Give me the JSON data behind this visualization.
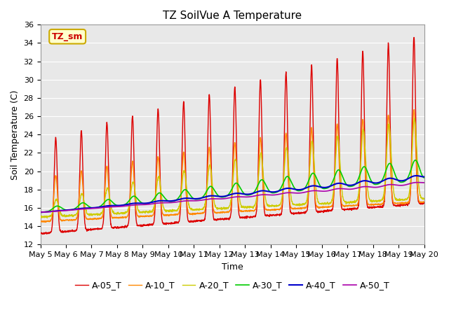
{
  "title": "TZ SoilVue A Temperature",
  "xlabel": "Time",
  "ylabel": "Soil Temperature (C)",
  "ylim": [
    12,
    36
  ],
  "x_tick_labels": [
    "May 5",
    "May 6",
    "May 7",
    "May 8",
    "May 9",
    "May 10",
    "May 11",
    "May 12",
    "May 13",
    "May 14",
    "May 15",
    "May 16",
    "May 17",
    "May 18",
    "May 19",
    "May 20"
  ],
  "legend_labels": [
    "A-05_T",
    "A-10_T",
    "A-20_T",
    "A-30_T",
    "A-40_T",
    "A-50_T"
  ],
  "line_colors": [
    "#dd0000",
    "#ff8800",
    "#cccc00",
    "#00cc00",
    "#0000cc",
    "#aa00aa"
  ],
  "bg_color": "#e8e8e8",
  "annotation_text": "TZ_sm",
  "annotation_color": "#cc0000",
  "annotation_bg": "#ffffcc",
  "annotation_border": "#ccaa00",
  "title_fontsize": 11,
  "axis_label_fontsize": 9,
  "tick_fontsize": 8,
  "legend_fontsize": 9,
  "figsize": [
    6.4,
    4.8
  ],
  "dpi": 100
}
